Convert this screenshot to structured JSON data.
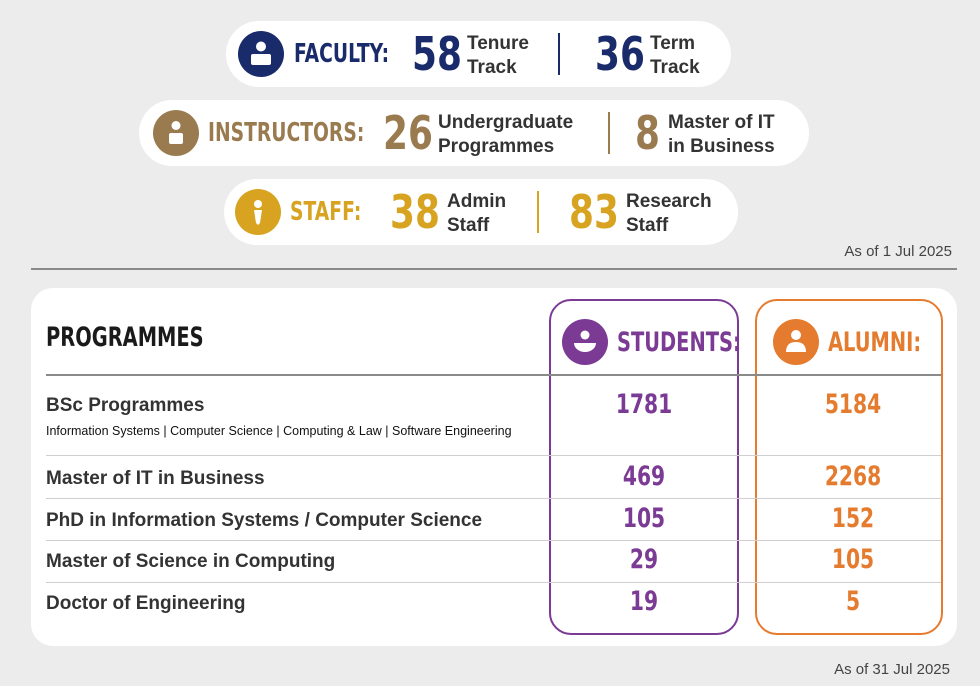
{
  "colors": {
    "faculty": "#1a2b6b",
    "instructors": "#9a7b4f",
    "staff": "#d7a321",
    "students": "#7b3b95",
    "alumni": "#e57b2e"
  },
  "faculty": {
    "icon": "person-badge-icon",
    "label": "FACULTY:",
    "a_value": "58",
    "a_line1": "Tenure",
    "a_line2": "Track",
    "b_value": "36",
    "b_line1": "Term",
    "b_line2": "Track"
  },
  "instructors": {
    "icon": "person-badge-icon",
    "label": "INSTRUCTORS:",
    "a_value": "26",
    "a_line1": "Undergraduate",
    "a_line2": "Programmes",
    "b_value": "8",
    "b_line1": "Master of IT",
    "b_line2": "in Business"
  },
  "staff": {
    "icon": "person-tie-icon",
    "label": "STAFF:",
    "a_value": "38",
    "a_line1": "Admin",
    "a_line2": "Staff",
    "b_value": "83",
    "b_line1": "Research",
    "b_line2": "Staff"
  },
  "as_of_top": "As of 1 Jul 2025",
  "table": {
    "programmes_header": "PROGRAMMES",
    "students_header": "STUDENTS:",
    "alumni_header": "ALUMNI:",
    "rows": [
      {
        "name": "BSc Programmes",
        "sub": "Information Systems | Computer Science | Computing & Law | Software Engineering",
        "students": "1781",
        "alumni": "5184"
      },
      {
        "name": "Master of IT in Business",
        "students": "469",
        "alumni": "2268"
      },
      {
        "name": "PhD in Information Systems / Computer Science",
        "students": "105",
        "alumni": "152"
      },
      {
        "name": "Master of Science in Computing",
        "students": "29",
        "alumni": "105"
      },
      {
        "name": "Doctor of Engineering",
        "students": "19",
        "alumni": "5"
      }
    ]
  },
  "as_of_bottom": "As of 31 Jul 2025"
}
